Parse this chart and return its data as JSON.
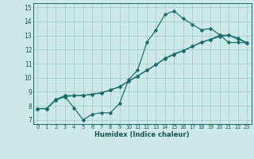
{
  "xlabel": "Humidex (Indice chaleur)",
  "background_color": "#cce8e8",
  "grid_color": "#aad0d0",
  "line_color": "#1a6b6b",
  "x_hours": [
    0,
    1,
    2,
    3,
    4,
    5,
    6,
    7,
    8,
    9,
    10,
    11,
    12,
    13,
    14,
    15,
    16,
    17,
    18,
    19,
    20,
    21,
    22,
    23
  ],
  "line_max": [
    7.8,
    7.8,
    8.4,
    8.65,
    7.85,
    7.0,
    7.4,
    7.5,
    7.5,
    8.15,
    9.85,
    10.55,
    12.5,
    13.4,
    14.5,
    14.75,
    14.2,
    13.8,
    13.4,
    13.5,
    13.05,
    12.5,
    12.5,
    12.48
  ],
  "line_mid": [
    7.8,
    7.8,
    8.45,
    8.72,
    8.72,
    8.73,
    8.82,
    8.92,
    9.12,
    9.35,
    9.75,
    10.12,
    10.52,
    10.92,
    11.35,
    11.65,
    11.92,
    12.22,
    12.52,
    12.72,
    12.92,
    13.02,
    12.75,
    12.48
  ],
  "line_min": [
    7.8,
    7.8,
    8.42,
    8.65,
    8.72,
    8.73,
    8.82,
    8.92,
    9.12,
    9.35,
    9.75,
    10.12,
    10.52,
    10.92,
    11.38,
    11.7,
    11.92,
    12.22,
    12.52,
    12.72,
    13.02,
    13.02,
    12.82,
    12.48
  ],
  "xlim": [
    -0.5,
    23.5
  ],
  "ylim": [
    6.7,
    15.3
  ],
  "xticks": [
    0,
    1,
    2,
    3,
    4,
    5,
    6,
    7,
    8,
    9,
    10,
    11,
    12,
    13,
    14,
    15,
    16,
    17,
    18,
    19,
    20,
    21,
    22,
    23
  ],
  "yticks": [
    7,
    8,
    9,
    10,
    11,
    12,
    13,
    14,
    15
  ]
}
